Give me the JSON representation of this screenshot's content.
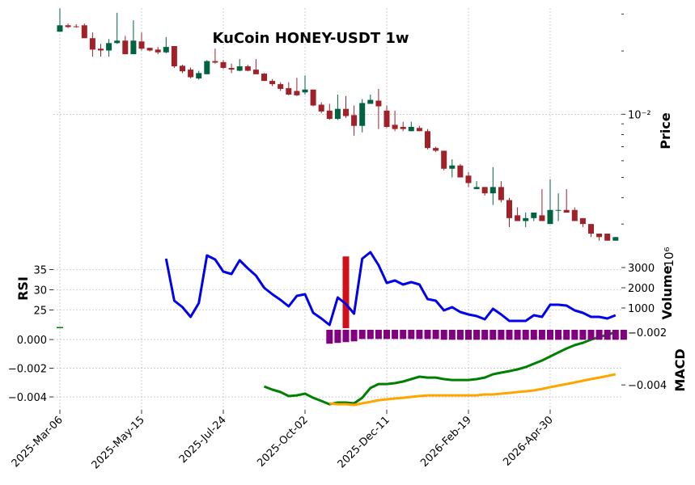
{
  "chart_data": {
    "type": "candlestick",
    "title": "KuCoin HONEY-USDT 1w",
    "categories": [
      "2025-Mar-06",
      null,
      null,
      null,
      null,
      null,
      null,
      null,
      null,
      null,
      "2025-May-15",
      null,
      null,
      null,
      null,
      null,
      null,
      null,
      null,
      null,
      "2025-Jul-24",
      null,
      null,
      null,
      null,
      null,
      null,
      null,
      null,
      null,
      "2025-Oct-02",
      null,
      null,
      null,
      null,
      null,
      null,
      null,
      null,
      null,
      "2025-Dec-11",
      null,
      null,
      null,
      null,
      null,
      null,
      null,
      null,
      null,
      "2026-Feb-19",
      null,
      null,
      null,
      null,
      null,
      null,
      null,
      null,
      null,
      "2026-Apr-30",
      null,
      null,
      null,
      null,
      null,
      null,
      null,
      null
    ],
    "open": [
      0.0247,
      0.0265,
      0.0262,
      0.0265,
      0.023,
      0.0205,
      0.0201,
      0.0218,
      0.0224,
      0.0193,
      0.0222,
      0.0207,
      0.0203,
      0.0197,
      0.0211,
      0.017,
      0.0163,
      0.0148,
      0.0155,
      0.0179,
      0.0177,
      0.0166,
      0.0161,
      0.0169,
      0.0163,
      0.0156,
      0.0144,
      0.0139,
      0.0133,
      0.0129,
      0.0127,
      0.0131,
      0.0111,
      0.0104,
      0.0095,
      0.0106,
      0.0099,
      0.0088,
      0.0112,
      0.0116,
      0.0104,
      0.0089,
      0.0087,
      0.0083,
      0.0086,
      0.0083,
      0.0069,
      0.0067,
      0.0055,
      0.0057,
      0.0051,
      0.0044,
      0.0045,
      0.0042,
      0.0045,
      0.0039,
      0.0033,
      0.0031,
      0.0032,
      0.0033,
      0.003,
      0.0035,
      0.0035,
      0.0035,
      0.0032,
      0.003,
      0.0027,
      0.0027,
      0.0025
    ],
    "high": [
      0.0319,
      0.027,
      0.0268,
      0.027,
      0.0245,
      0.0216,
      0.0228,
      0.0304,
      0.0236,
      0.028,
      0.0245,
      0.0207,
      0.0209,
      0.0233,
      0.0211,
      0.0172,
      0.0167,
      0.0161,
      0.0181,
      0.0205,
      0.0181,
      0.0174,
      0.0183,
      0.0172,
      0.0183,
      0.0157,
      0.0147,
      0.0142,
      0.0142,
      0.0149,
      0.0153,
      0.0131,
      0.0114,
      0.0112,
      0.0124,
      0.0122,
      0.011,
      0.0118,
      0.0124,
      0.0132,
      0.011,
      0.0104,
      0.0092,
      0.0092,
      0.0088,
      0.0085,
      0.007,
      0.0067,
      0.0061,
      0.0058,
      0.0053,
      0.0048,
      0.0045,
      0.0056,
      0.0048,
      0.004,
      0.0036,
      0.0034,
      0.0034,
      0.0044,
      0.0049,
      0.0042,
      0.0044,
      0.0036,
      0.0032,
      0.003,
      0.0027,
      0.0027,
      0.0026
    ],
    "low": [
      0.0247,
      0.0257,
      0.0258,
      0.023,
      0.0188,
      0.0188,
      0.0188,
      0.0216,
      0.0193,
      0.0193,
      0.0201,
      0.0199,
      0.0193,
      0.0195,
      0.0166,
      0.0157,
      0.0148,
      0.0146,
      0.0155,
      0.0174,
      0.0164,
      0.0157,
      0.016,
      0.016,
      0.0155,
      0.0144,
      0.0136,
      0.0129,
      0.0123,
      0.0122,
      0.0124,
      0.0109,
      0.0101,
      0.0094,
      0.0094,
      0.0096,
      0.0079,
      0.0082,
      0.0112,
      0.0085,
      0.0086,
      0.0083,
      0.0083,
      0.0083,
      0.0083,
      0.0068,
      0.0066,
      0.0054,
      0.005,
      0.005,
      0.0045,
      0.0044,
      0.0041,
      0.0037,
      0.0038,
      0.0029,
      0.0031,
      0.0029,
      0.0031,
      0.0031,
      0.003,
      0.0031,
      0.0034,
      0.0031,
      0.0029,
      0.0026,
      0.0025,
      0.0025,
      0.0025
    ],
    "close": [
      0.0265,
      0.026,
      0.026,
      0.023,
      0.0203,
      0.0201,
      0.0218,
      0.0224,
      0.0193,
      0.0224,
      0.0205,
      0.0201,
      0.0197,
      0.0209,
      0.0169,
      0.016,
      0.015,
      0.0157,
      0.0179,
      0.0176,
      0.0166,
      0.0163,
      0.0169,
      0.0161,
      0.0155,
      0.0144,
      0.0139,
      0.0132,
      0.0124,
      0.0123,
      0.0131,
      0.011,
      0.0103,
      0.0095,
      0.0106,
      0.0098,
      0.0088,
      0.0113,
      0.0117,
      0.0109,
      0.0087,
      0.0085,
      0.0085,
      0.0087,
      0.0083,
      0.0069,
      0.0067,
      0.0055,
      0.0057,
      0.005,
      0.0047,
      0.0045,
      0.0042,
      0.0045,
      0.0039,
      0.0032,
      0.0031,
      0.0032,
      0.0034,
      0.0031,
      0.0035,
      0.0035,
      0.0034,
      0.0031,
      0.003,
      0.0027,
      0.0026,
      0.0025,
      0.0026
    ],
    "up_color": "#006340",
    "down_color": "#a02128",
    "log_scale": true,
    "ylim": [
      0.00245,
      0.032
    ],
    "yticks": [
      {
        "value": 0.01,
        "label": "10⁻²"
      }
    ],
    "yminorticks": [
      0.003,
      0.004,
      0.005,
      0.006,
      0.007,
      0.008,
      0.009,
      0.02,
      0.03
    ],
    "ylabel": "Price",
    "grid": true,
    "volume": {
      "ylabel": "Volume",
      "offset_label": "10⁶",
      "color": "#d0101a",
      "first_color": "#008000",
      "values": [
        60,
        0,
        0,
        0,
        0,
        0,
        0,
        0,
        0,
        0,
        0,
        0,
        0,
        0,
        0,
        0,
        0,
        0,
        0,
        0,
        0,
        0,
        0,
        0,
        0,
        0,
        0,
        0,
        0,
        0,
        0,
        0,
        0,
        0,
        0,
        3550,
        0,
        0,
        0,
        0,
        0,
        0,
        0,
        0,
        0,
        0,
        0,
        0,
        0,
        0,
        0,
        0,
        0,
        0,
        0,
        0,
        0,
        0,
        0,
        0,
        0,
        0,
        0,
        0,
        0,
        0,
        0,
        0,
        0
      ],
      "ylim": [
        0,
        4000
      ],
      "yticks": [
        1000,
        2000,
        3000
      ]
    },
    "rsi": {
      "ylabel": "RSI",
      "color": "#0000ee",
      "values": [
        null,
        null,
        null,
        null,
        null,
        null,
        null,
        null,
        null,
        null,
        null,
        null,
        null,
        37.7,
        27.3,
        25.7,
        23.3,
        26.7,
        38.5,
        37.5,
        34.5,
        33.9,
        37.3,
        35.3,
        33.5,
        30.5,
        28.9,
        27.5,
        25.9,
        28.5,
        28.9,
        24.3,
        22.9,
        21.3,
        28.1,
        26.5,
        24.1,
        37.7,
        39.3,
        36.1,
        31.7,
        32.3,
        31.3,
        31.9,
        31.3,
        27.7,
        27.3,
        24.9,
        25.7,
        24.5,
        23.9,
        23.5,
        22.7,
        25.3,
        23.9,
        22.3,
        22.3,
        22.3,
        23.7,
        23.3,
        26.3,
        26.3,
        26.1,
        24.9,
        24.3,
        23.3,
        23.3,
        22.9,
        23.7
      ],
      "ylim": [
        20.5,
        40.5
      ],
      "yticks": [
        25,
        30,
        35
      ]
    },
    "macd": {
      "ylabel": "MACD",
      "ylim": [
        -0.0049,
        0.00068
      ],
      "yticks": [
        {
          "value": 0,
          "label": "0.000"
        },
        {
          "value": -0.002,
          "label": "−0.002"
        },
        {
          "value": -0.004,
          "label": "−0.004"
        }
      ],
      "y2lim": [
        -0.00495,
        -0.0019
      ],
      "y2ticks": [
        {
          "value": -0.002,
          "label": "−0.002"
        },
        {
          "value": -0.004,
          "label": "−0.004"
        }
      ],
      "series": [
        {
          "color": "#008000",
          "values": [
            null,
            null,
            null,
            null,
            null,
            null,
            null,
            null,
            null,
            null,
            null,
            null,
            null,
            null,
            null,
            null,
            null,
            null,
            null,
            null,
            null,
            null,
            null,
            null,
            null,
            -0.00327,
            -0.00349,
            -0.00366,
            -0.00394,
            -0.00389,
            -0.00377,
            -0.00406,
            -0.00428,
            -0.00451,
            -0.00439,
            -0.00439,
            -0.00445,
            -0.00406,
            -0.00338,
            -0.0031,
            -0.0031,
            -0.00304,
            -0.00293,
            -0.00276,
            -0.00259,
            -0.00265,
            -0.00265,
            -0.00276,
            -0.00282,
            -0.00282,
            -0.00282,
            -0.00276,
            -0.00265,
            -0.00242,
            -0.00231,
            -0.0022,
            -0.00208,
            -0.00192,
            -0.00169,
            -0.00146,
            -0.00118,
            -0.0009,
            -0.00062,
            -0.00039,
            -0.00023,
            0,
            0.00017,
            0.00034,
            0.00051
          ]
        },
        {
          "color": "#ffa500",
          "values": [
            null,
            null,
            null,
            null,
            null,
            null,
            null,
            null,
            null,
            null,
            null,
            null,
            null,
            null,
            null,
            null,
            null,
            null,
            null,
            null,
            null,
            null,
            null,
            null,
            null,
            null,
            null,
            null,
            null,
            null,
            null,
            null,
            null,
            -0.00445,
            -0.00451,
            -0.00451,
            -0.00456,
            -0.00445,
            -0.00434,
            -0.00423,
            -0.00417,
            -0.00411,
            -0.00406,
            -0.004,
            -0.00394,
            -0.00389,
            -0.00389,
            -0.00389,
            -0.00389,
            -0.00389,
            -0.00389,
            -0.00389,
            -0.00383,
            -0.00383,
            -0.00377,
            -0.00372,
            -0.00366,
            -0.00361,
            -0.00355,
            -0.00344,
            -0.00332,
            -0.00321,
            -0.0031,
            -0.00299,
            -0.00287,
            -0.00276,
            -0.00265,
            -0.00254,
            -0.00242
          ]
        },
        {
          "color": "#800080",
          "type": "bar",
          "axis": "y2",
          "values": [
            null,
            null,
            null,
            null,
            null,
            null,
            null,
            null,
            null,
            null,
            null,
            null,
            null,
            null,
            null,
            null,
            null,
            null,
            null,
            null,
            null,
            null,
            null,
            null,
            null,
            null,
            null,
            null,
            null,
            null,
            null,
            null,
            null,
            -0.00243,
            -0.0024,
            -0.00237,
            -0.00234,
            -0.00225,
            -0.00225,
            -0.00225,
            -0.00225,
            -0.00225,
            -0.00225,
            -0.00225,
            -0.00225,
            -0.00225,
            -0.00225,
            -0.00228,
            -0.00228,
            -0.00228,
            -0.00228,
            -0.00228,
            -0.00228,
            -0.00228,
            -0.00228,
            -0.00228,
            -0.00228,
            -0.00228,
            -0.00228,
            -0.00228,
            -0.00228,
            -0.00228,
            -0.00228,
            -0.00228,
            -0.00228,
            -0.00228,
            -0.00228,
            -0.00228,
            -0.00228,
            -0.00228
          ]
        }
      ]
    }
  }
}
